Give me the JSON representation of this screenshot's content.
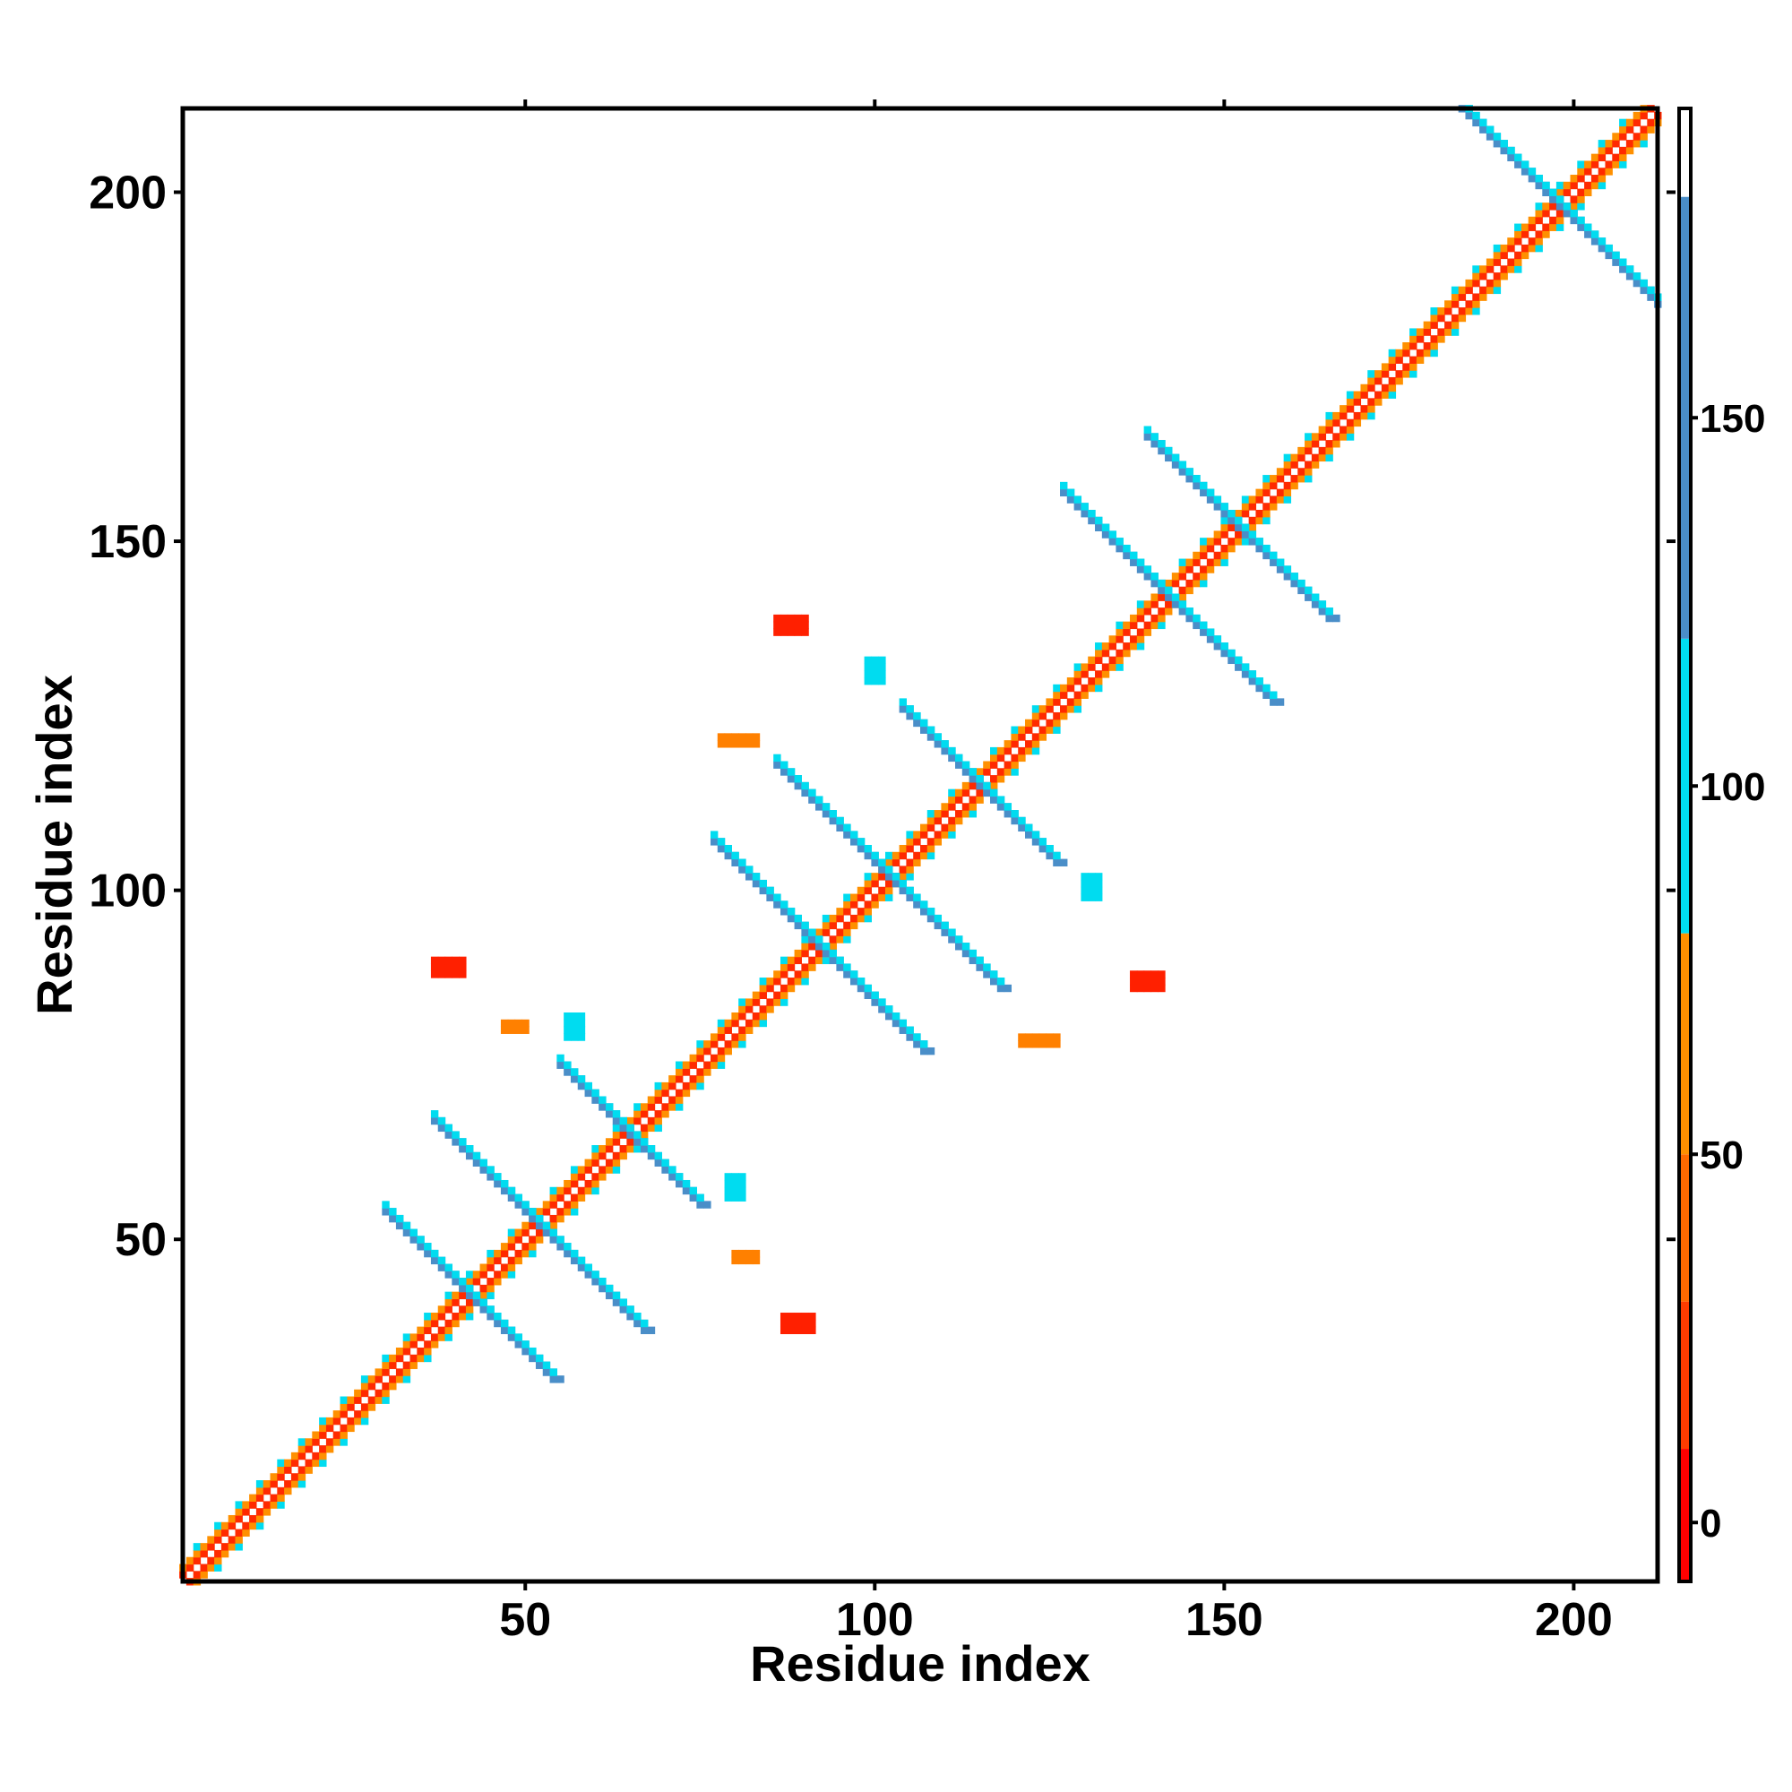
{
  "chart_data": {
    "type": "heatmap",
    "xlabel": "Residue index",
    "ylabel": "Residue index",
    "xlim": [
      1,
      212
    ],
    "ylim": [
      1,
      212
    ],
    "x_ticks": [
      50,
      100,
      150,
      200
    ],
    "y_ticks": [
      50,
      100,
      150,
      200
    ],
    "colorbar": {
      "range": [
        -8,
        192
      ],
      "ticks": [
        0,
        50,
        100,
        150
      ],
      "stops": [
        {
          "from": -8,
          "to": 10,
          "color": "#ff0000"
        },
        {
          "from": 10,
          "to": 30,
          "color": "#ff3c00"
        },
        {
          "from": 30,
          "to": 50,
          "color": "#ff6a00"
        },
        {
          "from": 50,
          "to": 80,
          "color": "#ff9000"
        },
        {
          "from": 80,
          "to": 120,
          "color": "#00dcf0"
        },
        {
          "from": 120,
          "to": 180,
          "color": "#4a8ec8"
        },
        {
          "from": 180,
          "to": 192,
          "color": "#ffffff"
        }
      ]
    },
    "main_diagonal": {
      "from": 1,
      "to": 212,
      "width": 4
    },
    "anti_diagonal_stripes": [
      {
        "center": [
          42,
          42
        ],
        "length": 24,
        "color": "#4a8ec8"
      },
      {
        "center": [
          52,
          52
        ],
        "length": 30,
        "color": "#4a8ec8"
      },
      {
        "center": [
          65,
          65
        ],
        "length": 20,
        "color": "#4a8ec8"
      },
      {
        "center": [
          92,
          92
        ],
        "length": 30,
        "color": "#4a8ec8"
      },
      {
        "center": [
          102,
          102
        ],
        "length": 32,
        "color": "#4a8ec8"
      },
      {
        "center": [
          115,
          115
        ],
        "length": 22,
        "color": "#4a8ec8"
      },
      {
        "center": [
          142,
          142
        ],
        "length": 30,
        "color": "#4a8ec8"
      },
      {
        "center": [
          152,
          152
        ],
        "length": 26,
        "color": "#4a8ec8"
      },
      {
        "center": [
          198,
          198
        ],
        "length": 36,
        "color": "#4a8ec8"
      }
    ],
    "blobs": [
      {
        "x": 37,
        "y": 88,
        "w": 5,
        "h": 3,
        "color": "#ff2000"
      },
      {
        "x": 87,
        "y": 37,
        "w": 5,
        "h": 3,
        "color": "#ff2000"
      },
      {
        "x": 86,
        "y": 137,
        "w": 5,
        "h": 3,
        "color": "#ff2000"
      },
      {
        "x": 137,
        "y": 86,
        "w": 5,
        "h": 3,
        "color": "#ff2000"
      },
      {
        "x": 78,
        "y": 121,
        "w": 6,
        "h": 2,
        "color": "#ff8000"
      },
      {
        "x": 121,
        "y": 78,
        "w": 6,
        "h": 2,
        "color": "#ff8000"
      },
      {
        "x": 80,
        "y": 47,
        "w": 4,
        "h": 2,
        "color": "#ff8000"
      },
      {
        "x": 47,
        "y": 80,
        "w": 4,
        "h": 2,
        "color": "#ff8000"
      },
      {
        "x": 56,
        "y": 79,
        "w": 3,
        "h": 4,
        "color": "#00dcf0"
      },
      {
        "x": 79,
        "y": 56,
        "w": 3,
        "h": 4,
        "color": "#00dcf0"
      },
      {
        "x": 99,
        "y": 130,
        "w": 3,
        "h": 4,
        "color": "#00dcf0"
      },
      {
        "x": 130,
        "y": 99,
        "w": 3,
        "h": 4,
        "color": "#00dcf0"
      }
    ]
  }
}
